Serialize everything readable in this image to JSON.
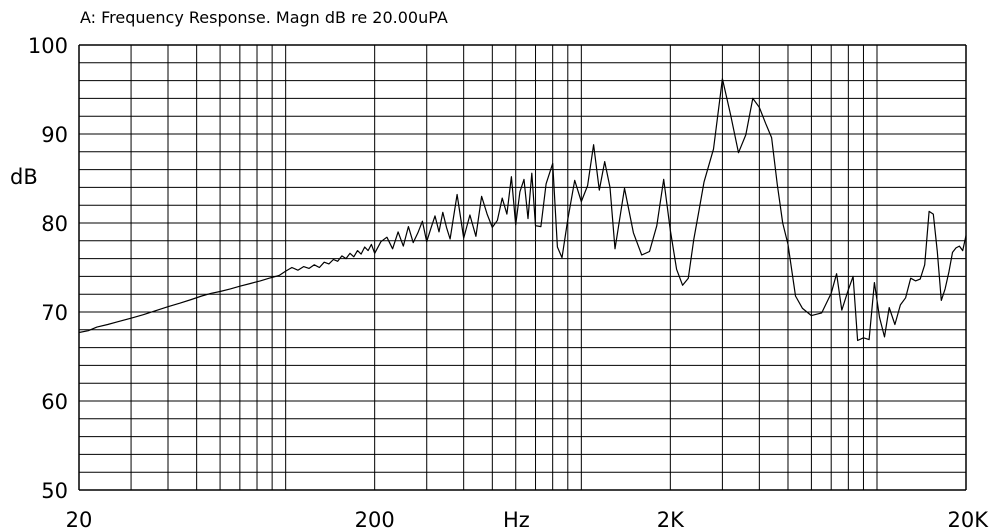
{
  "chart_data": {
    "type": "line",
    "title": "A: Frequency Response. Magn dB re 20.00uPA",
    "ylabel": "dB",
    "xlabel": "Hz",
    "xscale": "log",
    "xlim": [
      20,
      20000
    ],
    "ylim": [
      50,
      100
    ],
    "y_tick_labels": [
      "100",
      "90",
      "80",
      "70",
      "60",
      "50"
    ],
    "y_ticks": [
      100,
      90,
      80,
      70,
      60,
      50
    ],
    "x_tick_labels": [
      "20",
      "200",
      "2K",
      "20K"
    ],
    "x_ticks": [
      20,
      200,
      2000,
      20000
    ],
    "grid": true,
    "line_color": "#000000",
    "series": [
      {
        "x": [
          20,
          21.5,
          23,
          25,
          27,
          30,
          33,
          36,
          40,
          44,
          48,
          52,
          56,
          60,
          65,
          70,
          76,
          82,
          88,
          95,
          100,
          105,
          110,
          115,
          120,
          125,
          130,
          135,
          140,
          145,
          150,
          155,
          160,
          165,
          170,
          175,
          180,
          185,
          190,
          195,
          200,
          210,
          220,
          230,
          240,
          250,
          260,
          270,
          280,
          290,
          300,
          310,
          320,
          330,
          340,
          350,
          360,
          380,
          400,
          420,
          440,
          460,
          480,
          500,
          520,
          540,
          560,
          580,
          600,
          620,
          640,
          660,
          680,
          700,
          730,
          760,
          800,
          830,
          860,
          900,
          950,
          1000,
          1050,
          1100,
          1150,
          1200,
          1250,
          1300,
          1400,
          1500,
          1600,
          1700,
          1800,
          1900,
          2000,
          2100,
          2200,
          2300,
          2400,
          2500,
          2600,
          2800,
          3000,
          3200,
          3400,
          3600,
          3800,
          4000,
          4200,
          4400,
          4600,
          4800,
          5000,
          5300,
          5600,
          6000,
          6500,
          7000,
          7300,
          7600,
          8000,
          8300,
          8600,
          9000,
          9400,
          9800,
          10200,
          10600,
          11000,
          11500,
          12000,
          12500,
          13000,
          13500,
          14000,
          14500,
          15000,
          15500,
          16000,
          16500,
          17000,
          17500,
          18000,
          18500,
          19000,
          19500,
          20000
        ],
        "y": [
          67.7,
          67.9,
          68.3,
          68.6,
          68.9,
          69.3,
          69.7,
          70.1,
          70.6,
          71.0,
          71.4,
          71.8,
          72.1,
          72.3,
          72.6,
          72.9,
          73.2,
          73.5,
          73.8,
          74.1,
          74.6,
          75.0,
          74.7,
          75.1,
          74.9,
          75.3,
          75.0,
          75.6,
          75.4,
          75.9,
          75.7,
          76.3,
          76.0,
          76.6,
          76.2,
          76.9,
          76.5,
          77.3,
          76.9,
          77.6,
          76.6,
          77.9,
          78.4,
          77.1,
          79.0,
          77.4,
          79.6,
          77.8,
          78.9,
          80.2,
          77.9,
          79.4,
          80.8,
          79.0,
          81.2,
          79.5,
          78.2,
          83.2,
          78.3,
          80.9,
          78.5,
          83.0,
          81.0,
          79.5,
          80.3,
          82.8,
          81.0,
          85.2,
          79.8,
          83.5,
          84.9,
          80.5,
          85.6,
          79.7,
          79.6,
          84.4,
          86.7,
          77.3,
          76.1,
          80.4,
          84.8,
          82.4,
          84.2,
          88.8,
          83.7,
          86.9,
          84.0,
          77.1,
          83.9,
          78.9,
          76.4,
          76.8,
          79.7,
          84.9,
          79.2,
          74.8,
          73.0,
          73.8,
          78.1,
          81.4,
          84.6,
          88.3,
          96.2,
          92.1,
          87.9,
          89.9,
          94.0,
          93.0,
          91.2,
          89.6,
          84.3,
          80.0,
          77.6,
          71.8,
          70.4,
          69.6,
          69.9,
          72.1,
          74.3,
          70.2,
          72.5,
          74.0,
          66.8,
          67.1,
          66.9,
          73.3,
          69.4,
          67.2,
          70.5,
          68.6,
          70.8,
          71.6,
          73.8,
          73.5,
          73.7,
          75.3,
          81.3,
          81.0,
          76.8,
          71.3,
          72.6,
          74.5,
          76.7,
          77.2,
          77.4,
          76.9,
          78.6
        ]
      }
    ]
  }
}
